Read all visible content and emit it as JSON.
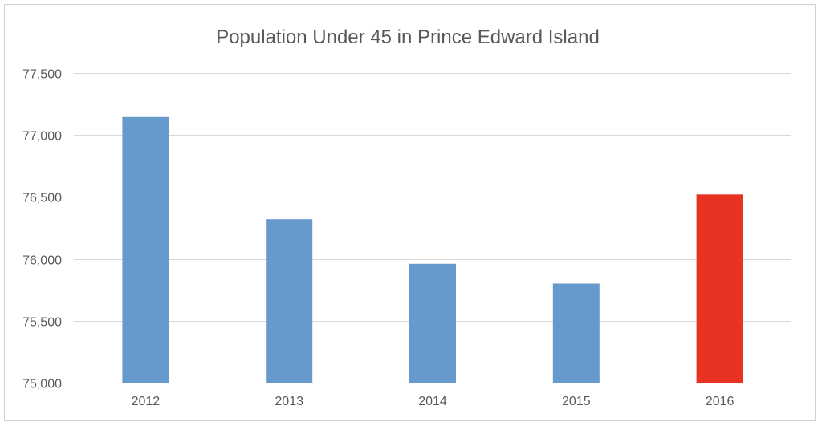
{
  "chart_data": {
    "type": "bar",
    "title": "Population Under 45 in Prince Edward Island",
    "categories": [
      "2012",
      "2013",
      "2014",
      "2015",
      "2016"
    ],
    "values": [
      77145,
      76320,
      75960,
      75800,
      76520
    ],
    "bar_colors": [
      "#6699cc",
      "#6699cc",
      "#6699cc",
      "#6699cc",
      "#e83323"
    ],
    "xlabel": "",
    "ylabel": "",
    "ylim": [
      75000,
      77500
    ],
    "y_ticks": [
      75000,
      75500,
      76000,
      76500,
      77000,
      77500
    ],
    "y_tick_labels": [
      "75,000",
      "75,500",
      "76,000",
      "76,500",
      "77,000",
      "77,500"
    ],
    "grid": true,
    "legend": "none"
  }
}
